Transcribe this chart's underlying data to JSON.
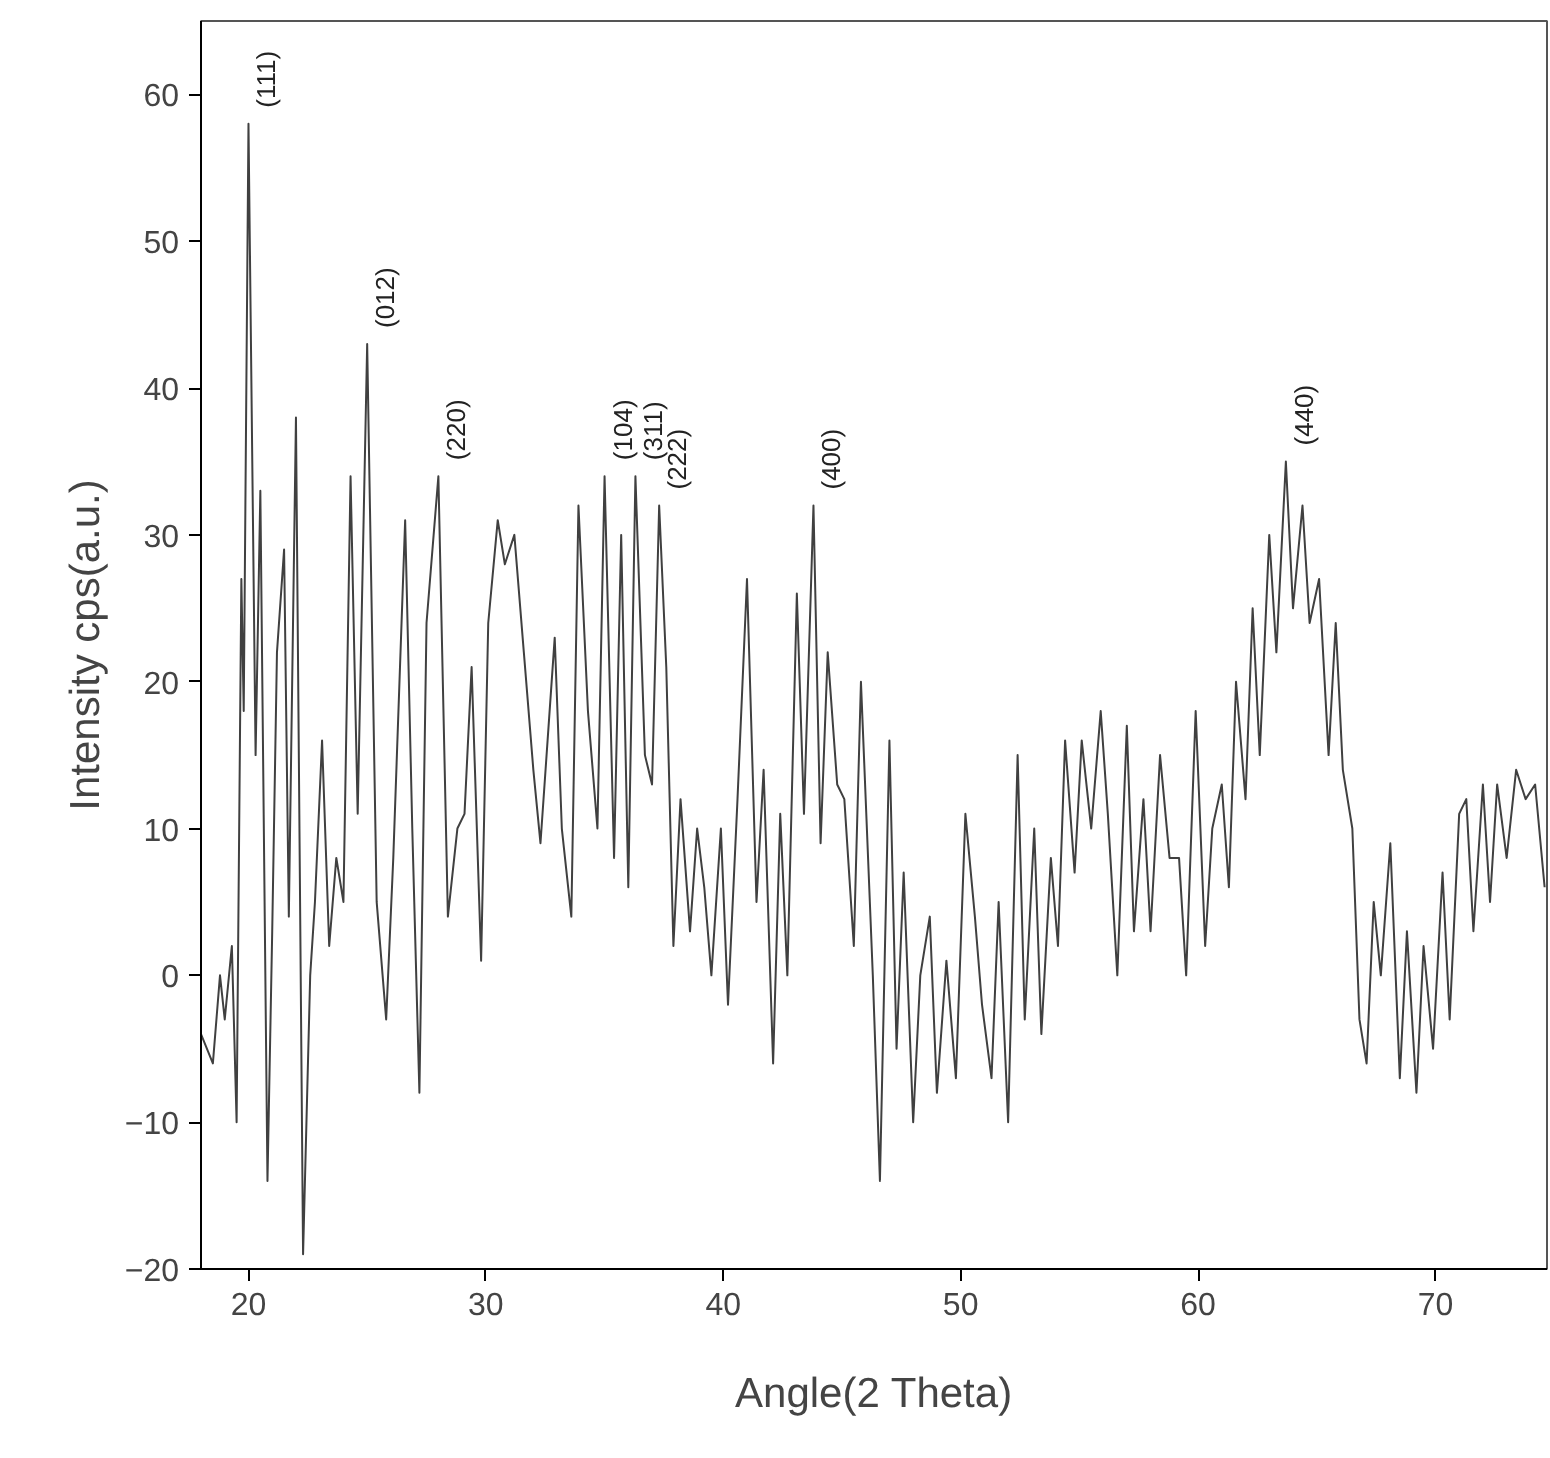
{
  "chart_data": {
    "type": "line",
    "xlabel": "Angle(2 Theta)",
    "ylabel": "Intensity cps(a.u.)",
    "xlim": [
      18,
      74.7
    ],
    "ylim": [
      -20,
      65
    ],
    "xticks": [
      20,
      30,
      40,
      50,
      60,
      70
    ],
    "yticks": [
      -20,
      -10,
      0,
      10,
      20,
      30,
      40,
      50,
      60
    ],
    "grid": false,
    "marker": "none",
    "line_style": "solid",
    "series": [
      {
        "color": "#404040",
        "x": [
          18.0,
          18.5,
          18.8,
          19.0,
          19.3,
          19.5,
          19.7,
          19.8,
          20.0,
          20.3,
          20.5,
          20.8,
          21.0,
          21.2,
          21.5,
          21.7,
          22.0,
          22.3,
          22.6,
          22.8,
          23.1,
          23.4,
          23.7,
          24.0,
          24.3,
          24.6,
          25.0,
          25.4,
          25.8,
          26.1,
          26.6,
          26.9,
          27.2,
          27.5,
          28.0,
          28.4,
          28.8,
          29.1,
          29.4,
          29.8,
          30.1,
          30.5,
          30.8,
          31.2,
          31.6,
          32.0,
          32.3,
          32.6,
          32.9,
          33.2,
          33.6,
          33.9,
          34.3,
          34.7,
          35.0,
          35.4,
          35.7,
          36.0,
          36.3,
          36.7,
          37.0,
          37.3,
          37.6,
          37.9,
          38.2,
          38.6,
          38.9,
          39.2,
          39.5,
          39.9,
          40.2,
          40.6,
          41.0,
          41.4,
          41.7,
          42.1,
          42.4,
          42.7,
          43.1,
          43.4,
          43.8,
          44.1,
          44.4,
          44.8,
          45.1,
          45.5,
          45.8,
          46.3,
          46.6,
          47.0,
          47.3,
          47.6,
          48.0,
          48.3,
          48.7,
          49.0,
          49.4,
          49.8,
          50.2,
          50.6,
          50.9,
          51.3,
          51.6,
          52.0,
          52.4,
          52.7,
          53.1,
          53.4,
          53.8,
          54.1,
          54.4,
          54.8,
          55.1,
          55.5,
          55.9,
          56.2,
          56.6,
          57.0,
          57.3,
          57.7,
          58.0,
          58.4,
          58.8,
          59.2,
          59.5,
          59.9,
          60.3,
          60.6,
          61.0,
          61.3,
          61.6,
          62.0,
          62.3,
          62.6,
          63.0,
          63.3,
          63.7,
          64.0,
          64.4,
          64.7,
          65.1,
          65.5,
          65.8,
          66.1,
          66.5,
          66.8,
          67.1,
          67.4,
          67.7,
          68.1,
          68.5,
          68.8,
          69.2,
          69.5,
          69.9,
          70.3,
          70.6,
          71.0,
          71.3,
          71.6,
          72.0,
          72.3,
          72.6,
          73.0,
          73.4,
          73.8,
          74.2,
          74.6
        ],
        "values": [
          -4,
          -6,
          0,
          -3,
          2,
          -10,
          27,
          18,
          58,
          15,
          33,
          -14,
          3,
          22,
          29,
          4,
          38,
          -19,
          0,
          5,
          16,
          2,
          8,
          5,
          34,
          11,
          43,
          5,
          -3,
          8,
          31,
          10,
          -8,
          24,
          34,
          4,
          10,
          11,
          21,
          1,
          24,
          31,
          28,
          30,
          22,
          14,
          9,
          16,
          23,
          10,
          4,
          32,
          18,
          10,
          34,
          8,
          30,
          6,
          34,
          15,
          13,
          32,
          21,
          2,
          12,
          3,
          10,
          6,
          0,
          10,
          -2,
          12,
          27,
          5,
          14,
          -6,
          11,
          0,
          26,
          11,
          32,
          9,
          22,
          13,
          12,
          2,
          20,
          0,
          -14,
          16,
          -5,
          7,
          -10,
          0,
          4,
          -8,
          1,
          -7,
          11,
          4,
          -2,
          -7,
          5,
          -10,
          15,
          -3,
          10,
          -4,
          8,
          2,
          16,
          7,
          16,
          10,
          18,
          11,
          0,
          17,
          3,
          12,
          3,
          15,
          8,
          8,
          0,
          18,
          2,
          10,
          13,
          6,
          20,
          12,
          25,
          15,
          30,
          22,
          35,
          25,
          32,
          24,
          27,
          15,
          24,
          14,
          10,
          -3,
          -6,
          5,
          0,
          9,
          -7,
          3,
          -8,
          2,
          -5,
          7,
          -3,
          11,
          12,
          3,
          13,
          5,
          13,
          8,
          14,
          12,
          13,
          6
        ]
      }
    ],
    "annotations": [
      {
        "text": "(111)",
        "x": 20.0,
        "y": 58
      },
      {
        "text": "(012)",
        "x": 25.0,
        "y": 43
      },
      {
        "text": "(220)",
        "x": 28.0,
        "y": 34
      },
      {
        "text": "(104)",
        "x": 35.0,
        "y": 34
      },
      {
        "text": "(311)",
        "x": 36.3,
        "y": 34
      },
      {
        "text": "(222)",
        "x": 37.3,
        "y": 32
      },
      {
        "text": "(400)",
        "x": 43.8,
        "y": 32
      },
      {
        "text": "(440)",
        "x": 63.7,
        "y": 35
      }
    ]
  }
}
